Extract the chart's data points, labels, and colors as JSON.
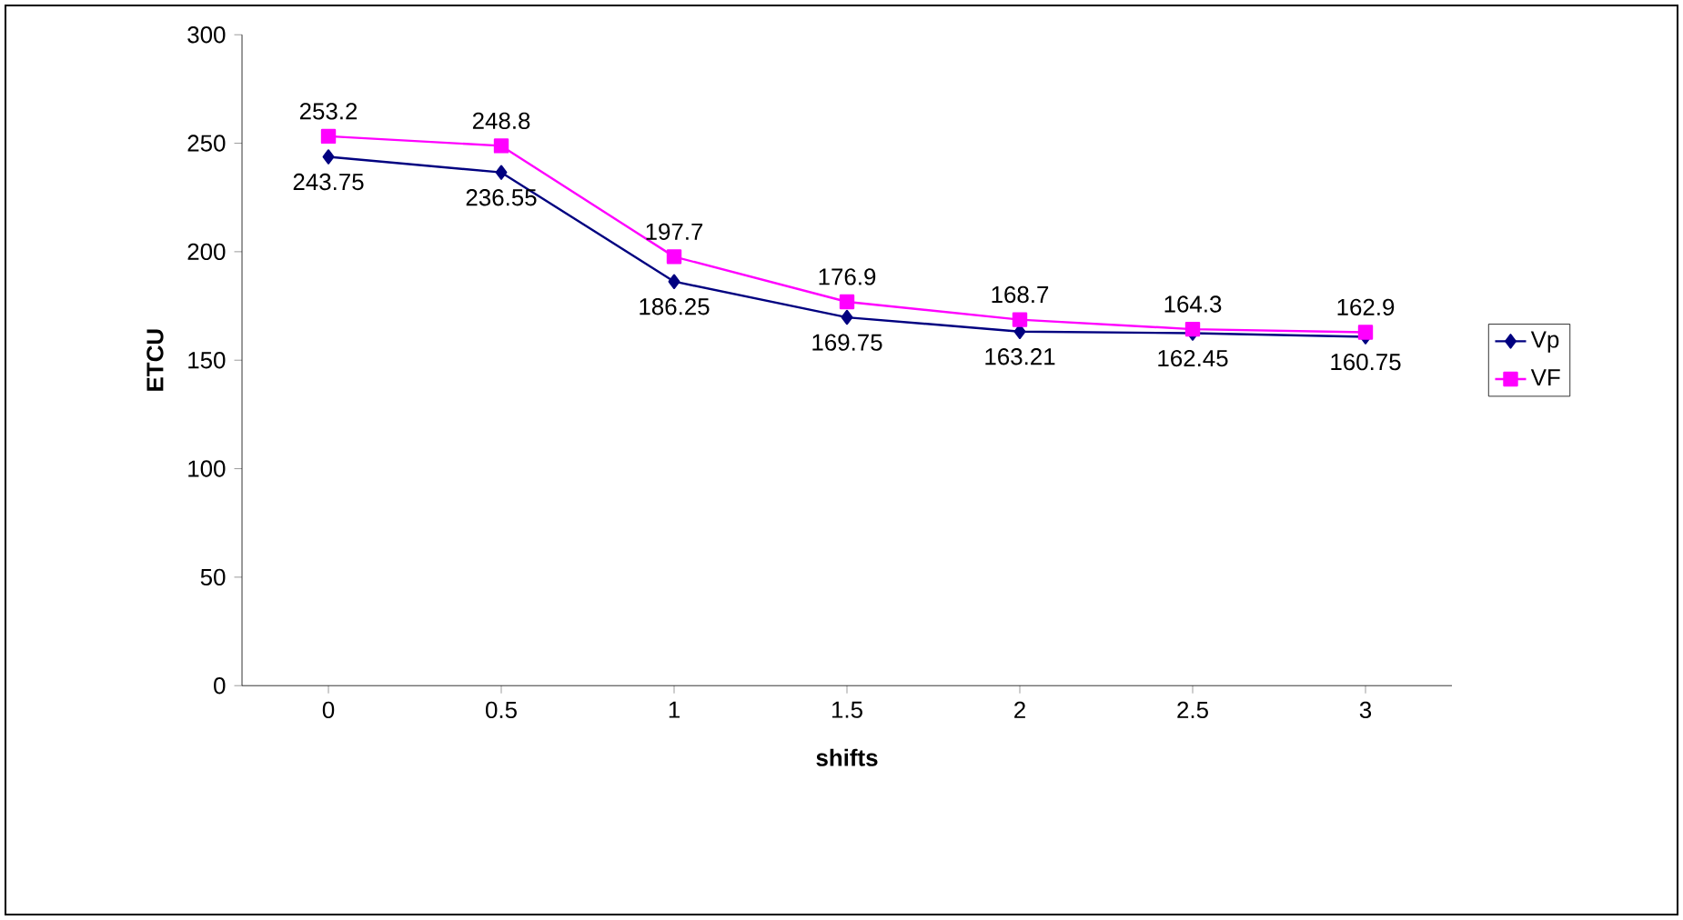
{
  "chart_data": {
    "type": "line",
    "xlabel": "shifts",
    "ylabel": "ETCU",
    "categories": [
      "0",
      "0.5",
      "1",
      "1.5",
      "2",
      "2.5",
      "3"
    ],
    "series": [
      {
        "name": "Vp",
        "color": "#000080",
        "marker": "diamond",
        "values": [
          243.75,
          236.55,
          186.25,
          169.75,
          163.21,
          162.45,
          160.75
        ]
      },
      {
        "name": "VF",
        "color": "#ff00ff",
        "marker": "square",
        "values": [
          253.2,
          248.8,
          197.7,
          176.9,
          168.7,
          164.3,
          162.9
        ]
      }
    ],
    "ylim": [
      0,
      300
    ],
    "yticks": [
      0,
      50,
      100,
      150,
      200,
      250,
      300
    ],
    "grid": false,
    "legend": "right",
    "data_labels": true,
    "line_style": "solid"
  }
}
